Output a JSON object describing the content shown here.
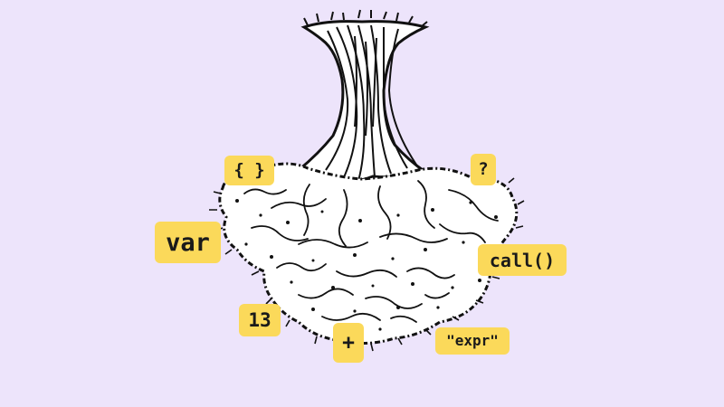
{
  "tags": {
    "braces": "{ }",
    "question": "?",
    "var": "var",
    "call": "call()",
    "number": "13",
    "plus": "+",
    "expr": "\"expr\""
  },
  "colors": {
    "background": "#ede4fb",
    "tag_fill": "#fbd95a",
    "ink": "#111111"
  },
  "illustration": {
    "subject": "tree-with-roots-icon"
  }
}
